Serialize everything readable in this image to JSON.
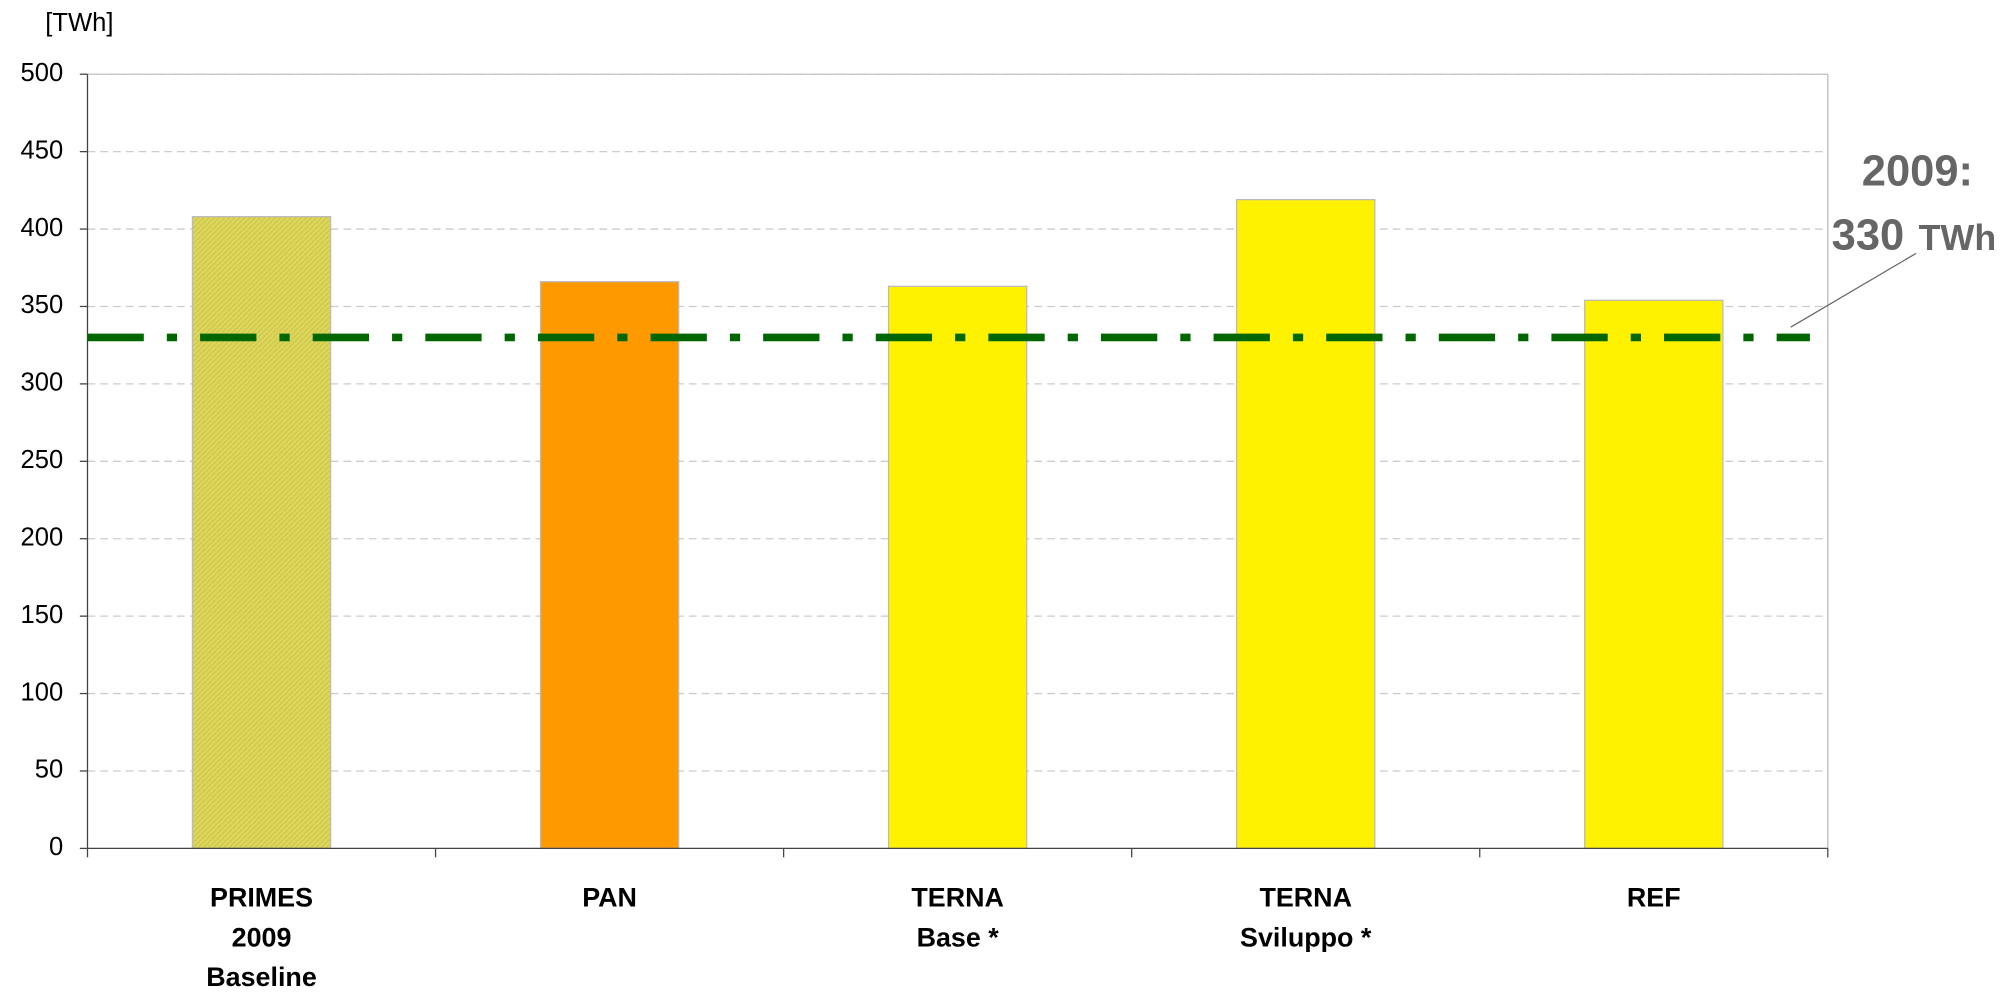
{
  "chart_data": {
    "type": "bar",
    "y_axis_label": "[TWh]",
    "categories": [
      [
        "PRIMES",
        "2009",
        "Baseline"
      ],
      [
        "PAN"
      ],
      [
        "TERNA",
        "Base *"
      ],
      [
        "TERNA",
        "Sviluppo *"
      ],
      [
        "REF"
      ]
    ],
    "values": [
      408,
      366,
      363,
      419,
      354
    ],
    "colors": [
      "#dcd65a",
      "#ff9900",
      "#fff200",
      "#fff200",
      "#fff200"
    ],
    "ylim": [
      0,
      500
    ],
    "yticks": [
      0,
      50,
      100,
      150,
      200,
      250,
      300,
      350,
      400,
      450,
      500
    ],
    "grid": true,
    "reference_line": {
      "value": 330,
      "label": "2009:",
      "unit": "TWh",
      "color": "#006600"
    }
  }
}
